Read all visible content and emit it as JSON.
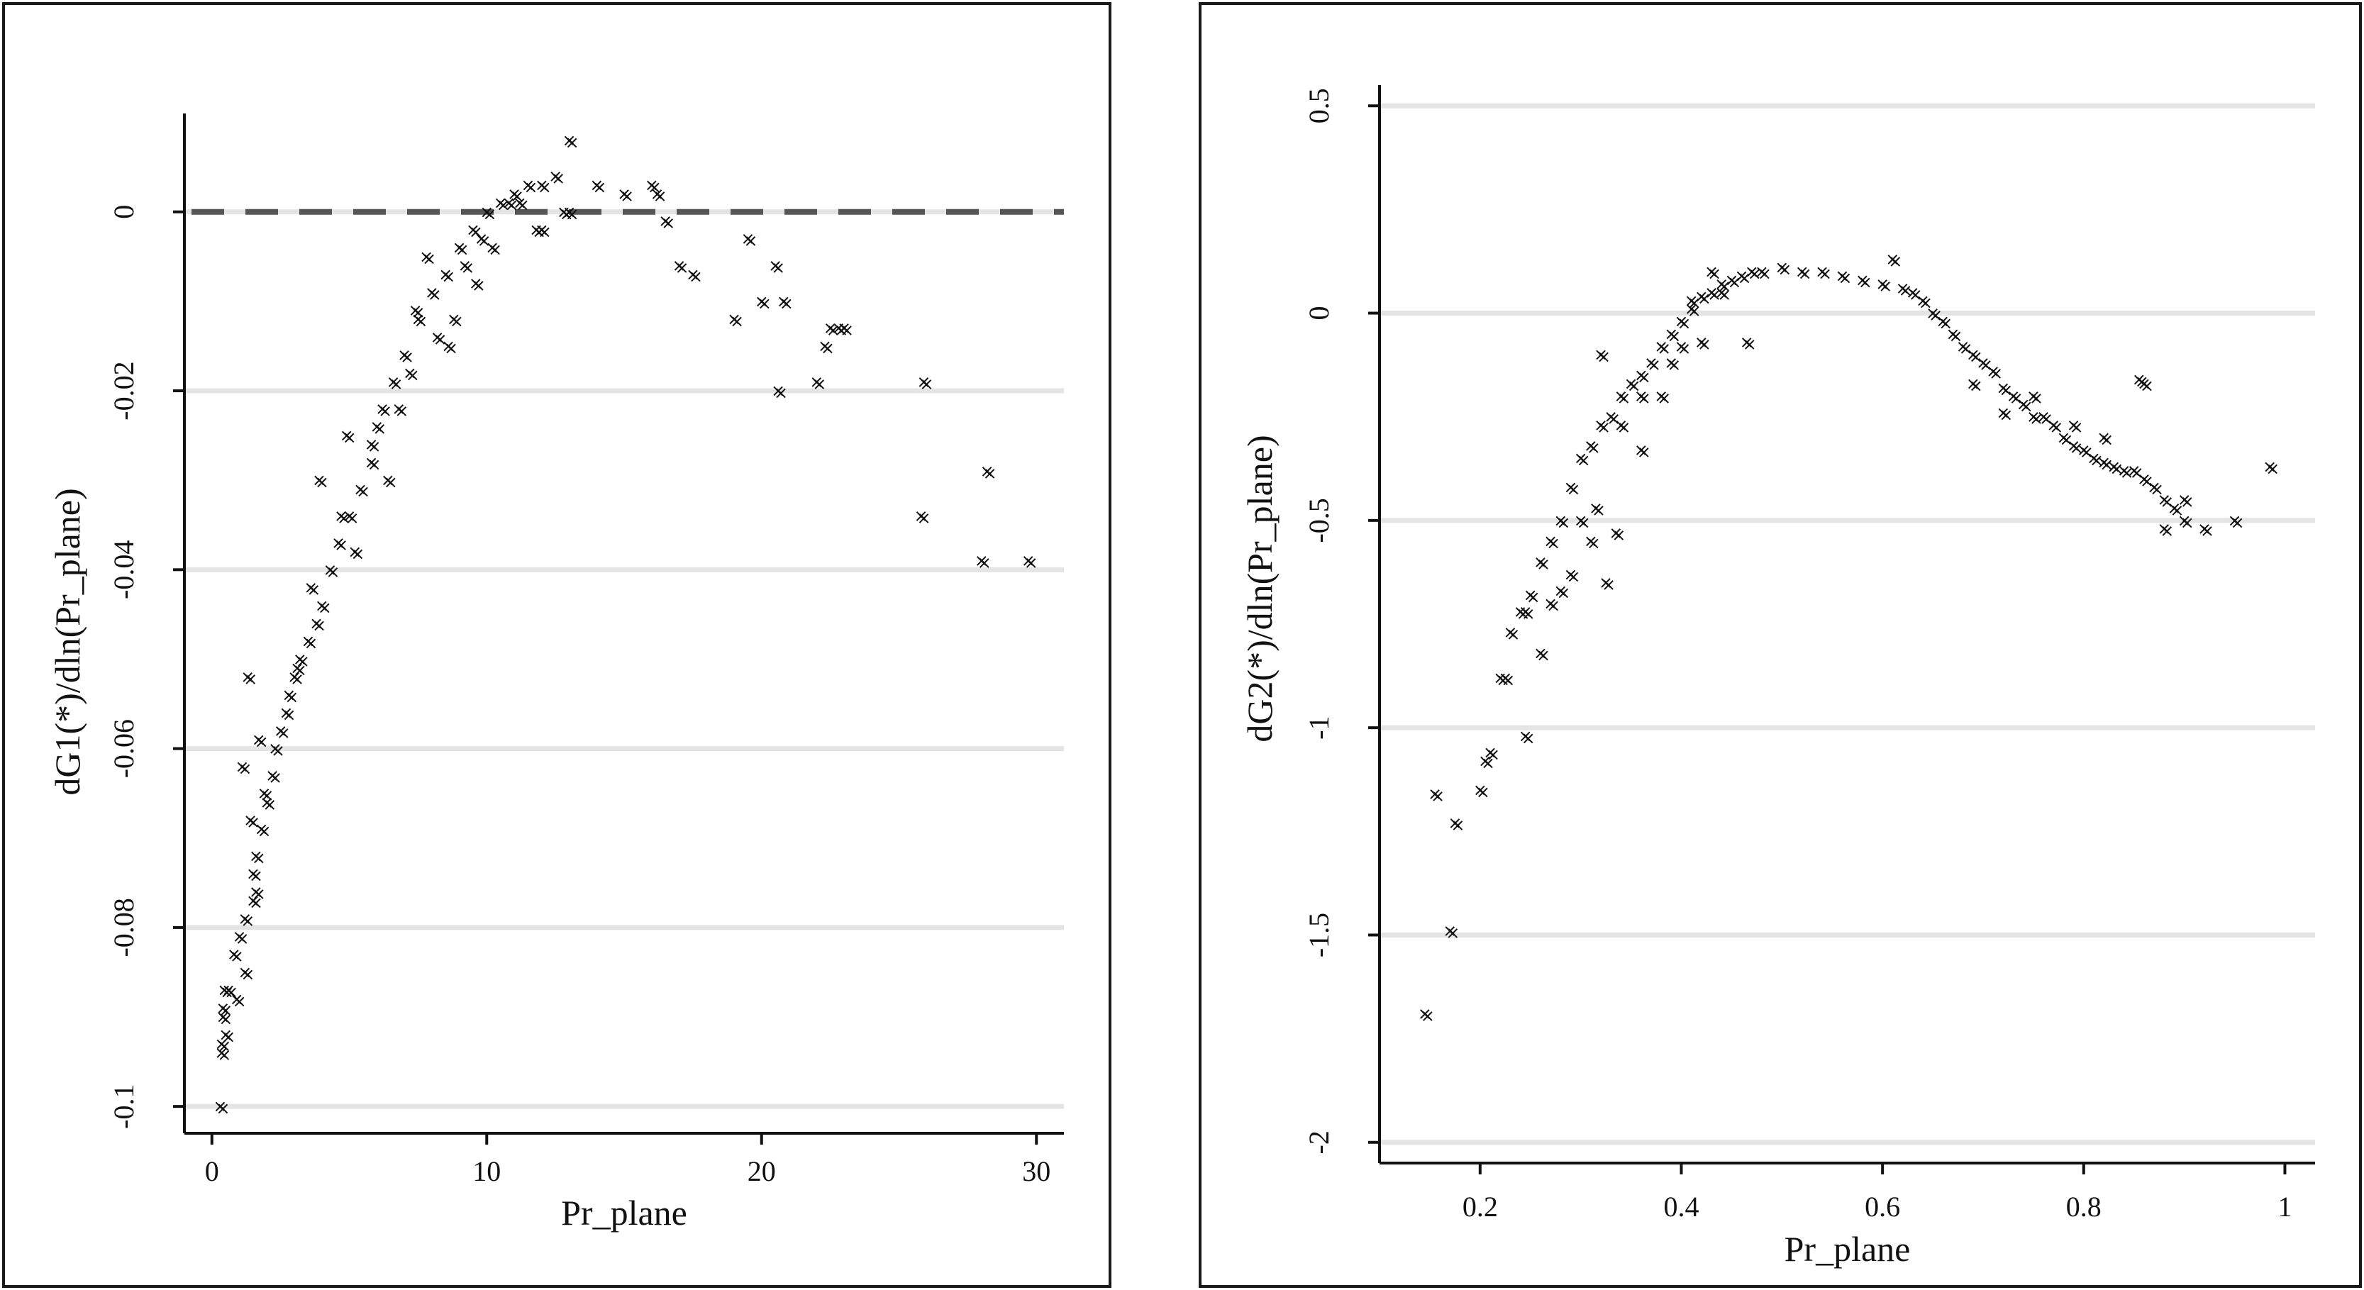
{
  "chart_data": [
    {
      "type": "scatter",
      "xlabel": "Pr_plane",
      "ylabel": "dG1(*)/dln(Pr_plane)",
      "xlim": [
        -1,
        31
      ],
      "ylim": [
        -0.103,
        0.011
      ],
      "x_ticks": [
        0,
        10,
        20,
        30
      ],
      "x_tick_labels": [
        "0",
        "10",
        "20",
        "30"
      ],
      "y_ticks": [
        0,
        -0.02,
        -0.04,
        -0.06,
        -0.08,
        -0.1
      ],
      "y_tick_labels": [
        "0",
        "-0.02",
        "-0.04",
        "-0.06",
        "-0.08",
        "-0.1"
      ],
      "grid": "horizontal",
      "reference_line": {
        "y": 0,
        "style": "dashed"
      },
      "marker": "×",
      "series": [
        {
          "x": [
            0.3,
            0.35,
            0.4,
            0.45,
            0.5,
            0.4,
            0.35,
            0.8,
            1.0,
            1.2,
            1.3,
            1.1,
            1.4,
            1.5,
            1.6,
            1.7,
            1.8,
            2.0,
            2.2,
            2.5,
            2.8,
            3.0,
            3.2,
            3.5,
            3.8,
            4.0,
            4.3,
            4.6,
            5.0,
            5.4,
            5.8,
            6.2,
            6.6,
            7.0,
            7.5,
            8.0,
            8.5,
            9.0,
            9.5,
            10.0,
            10.5,
            11.0,
            11.5,
            12.0,
            12.5,
            13.0,
            14.0,
            15.0,
            16.0,
            16.5,
            17.0,
            17.5,
            19.0,
            19.5,
            20.0,
            20.5,
            20.6,
            20.8,
            22.0,
            22.3,
            22.5,
            22.8,
            23.0,
            25.8,
            25.9,
            28.0,
            28.2,
            29.7,
            6.0,
            7.2,
            8.8,
            9.6,
            10.2,
            11.2,
            12.8,
            4.9,
            5.8,
            6.4,
            3.9,
            3.1,
            2.7,
            1.9,
            1.2,
            0.9,
            0.6,
            13.0,
            12.0,
            7.8,
            8.2,
            9.2,
            10.8,
            11.8,
            5.2,
            4.7,
            3.6,
            2.3,
            1.6,
            1.5,
            16.2,
            6.8,
            7.4,
            8.6,
            9.8
          ],
          "y": [
            -0.1,
            -0.093,
            -0.09,
            -0.087,
            -0.092,
            -0.089,
            -0.094,
            -0.083,
            -0.081,
            -0.079,
            -0.052,
            -0.062,
            -0.068,
            -0.074,
            -0.072,
            -0.059,
            -0.069,
            -0.066,
            -0.063,
            -0.058,
            -0.054,
            -0.052,
            -0.05,
            -0.048,
            -0.046,
            -0.044,
            -0.04,
            -0.037,
            -0.034,
            -0.031,
            -0.026,
            -0.022,
            -0.019,
            -0.016,
            -0.012,
            -0.009,
            -0.007,
            -0.004,
            -0.002,
            0.0,
            0.001,
            0.002,
            0.003,
            0.003,
            0.004,
            0.008,
            0.003,
            0.002,
            0.003,
            -0.001,
            -0.006,
            -0.007,
            -0.012,
            -0.003,
            -0.01,
            -0.006,
            -0.02,
            -0.01,
            -0.019,
            -0.015,
            -0.013,
            -0.013,
            -0.013,
            -0.034,
            -0.019,
            -0.039,
            -0.029,
            -0.039,
            -0.024,
            -0.018,
            -0.012,
            -0.008,
            -0.004,
            0.001,
            0.0,
            -0.025,
            -0.028,
            -0.03,
            -0.03,
            -0.051,
            -0.056,
            -0.065,
            -0.085,
            -0.088,
            -0.087,
            0.0,
            -0.002,
            -0.005,
            -0.014,
            -0.006,
            0.001,
            -0.002,
            -0.038,
            -0.034,
            -0.042,
            -0.06,
            -0.076,
            -0.077,
            0.002,
            -0.022,
            -0.011,
            -0.015,
            -0.003
          ]
        }
      ]
    },
    {
      "type": "scatter",
      "xlabel": "Pr_plane",
      "ylabel": "dG2(*)/dln(Pr_plane)",
      "xlim": [
        0.1,
        1.03
      ],
      "ylim": [
        -2.05,
        0.55
      ],
      "x_ticks": [
        0.2,
        0.4,
        0.6,
        0.8,
        1
      ],
      "x_tick_labels": [
        "0.2",
        "0.4",
        "0.6",
        "0.8",
        "1"
      ],
      "y_ticks": [
        0.5,
        0,
        -0.5,
        -1,
        -1.5,
        -2
      ],
      "y_tick_labels": [
        "0.5",
        "0",
        "-0.5",
        "-1",
        "-1.5",
        "-2"
      ],
      "grid": "horizontal",
      "marker": "×",
      "series": [
        {
          "x": [
            0.145,
            0.155,
            0.17,
            0.175,
            0.2,
            0.205,
            0.21,
            0.22,
            0.23,
            0.24,
            0.245,
            0.25,
            0.26,
            0.27,
            0.28,
            0.29,
            0.3,
            0.31,
            0.32,
            0.33,
            0.34,
            0.35,
            0.36,
            0.37,
            0.38,
            0.39,
            0.4,
            0.41,
            0.42,
            0.43,
            0.44,
            0.45,
            0.46,
            0.47,
            0.48,
            0.5,
            0.52,
            0.54,
            0.56,
            0.58,
            0.6,
            0.61,
            0.62,
            0.63,
            0.64,
            0.65,
            0.66,
            0.67,
            0.68,
            0.69,
            0.7,
            0.71,
            0.72,
            0.73,
            0.74,
            0.75,
            0.76,
            0.77,
            0.78,
            0.79,
            0.8,
            0.81,
            0.82,
            0.83,
            0.84,
            0.85,
            0.855,
            0.86,
            0.87,
            0.88,
            0.89,
            0.9,
            0.92,
            0.95,
            0.985,
            0.225,
            0.245,
            0.26,
            0.28,
            0.3,
            0.315,
            0.325,
            0.335,
            0.36,
            0.38,
            0.4,
            0.42,
            0.44,
            0.465,
            0.69,
            0.72,
            0.75,
            0.79,
            0.82,
            0.86,
            0.88,
            0.9,
            0.32,
            0.34,
            0.36,
            0.27,
            0.29,
            0.31,
            0.39,
            0.41,
            0.43
          ],
          "y": [
            -1.69,
            -1.16,
            -1.49,
            -1.23,
            -1.15,
            -1.08,
            -1.06,
            -0.88,
            -0.77,
            -0.72,
            -1.02,
            -0.68,
            -0.6,
            -0.55,
            -0.5,
            -0.42,
            -0.35,
            -0.32,
            -0.27,
            -0.25,
            -0.2,
            -0.17,
            -0.15,
            -0.12,
            -0.08,
            -0.05,
            -0.02,
            0.03,
            0.04,
            0.05,
            0.07,
            0.08,
            0.09,
            0.1,
            0.1,
            0.11,
            0.1,
            0.1,
            0.09,
            0.08,
            0.07,
            0.13,
            0.06,
            0.05,
            0.03,
            0.0,
            -0.02,
            -0.05,
            -0.08,
            -0.1,
            -0.12,
            -0.14,
            -0.18,
            -0.2,
            -0.22,
            -0.25,
            -0.25,
            -0.27,
            -0.3,
            -0.32,
            -0.33,
            -0.35,
            -0.36,
            -0.37,
            -0.38,
            -0.38,
            -0.16,
            -0.4,
            -0.42,
            -0.45,
            -0.47,
            -0.5,
            -0.52,
            -0.5,
            -0.37,
            -0.88,
            -0.72,
            -0.82,
            -0.67,
            -0.5,
            -0.47,
            -0.65,
            -0.53,
            -0.33,
            -0.2,
            -0.08,
            -0.07,
            0.05,
            -0.07,
            -0.17,
            -0.24,
            -0.2,
            -0.27,
            -0.3,
            -0.17,
            -0.52,
            -0.45,
            -0.1,
            -0.27,
            -0.2,
            -0.7,
            -0.63,
            -0.55,
            -0.12,
            0.01,
            0.1
          ]
        }
      ]
    }
  ]
}
